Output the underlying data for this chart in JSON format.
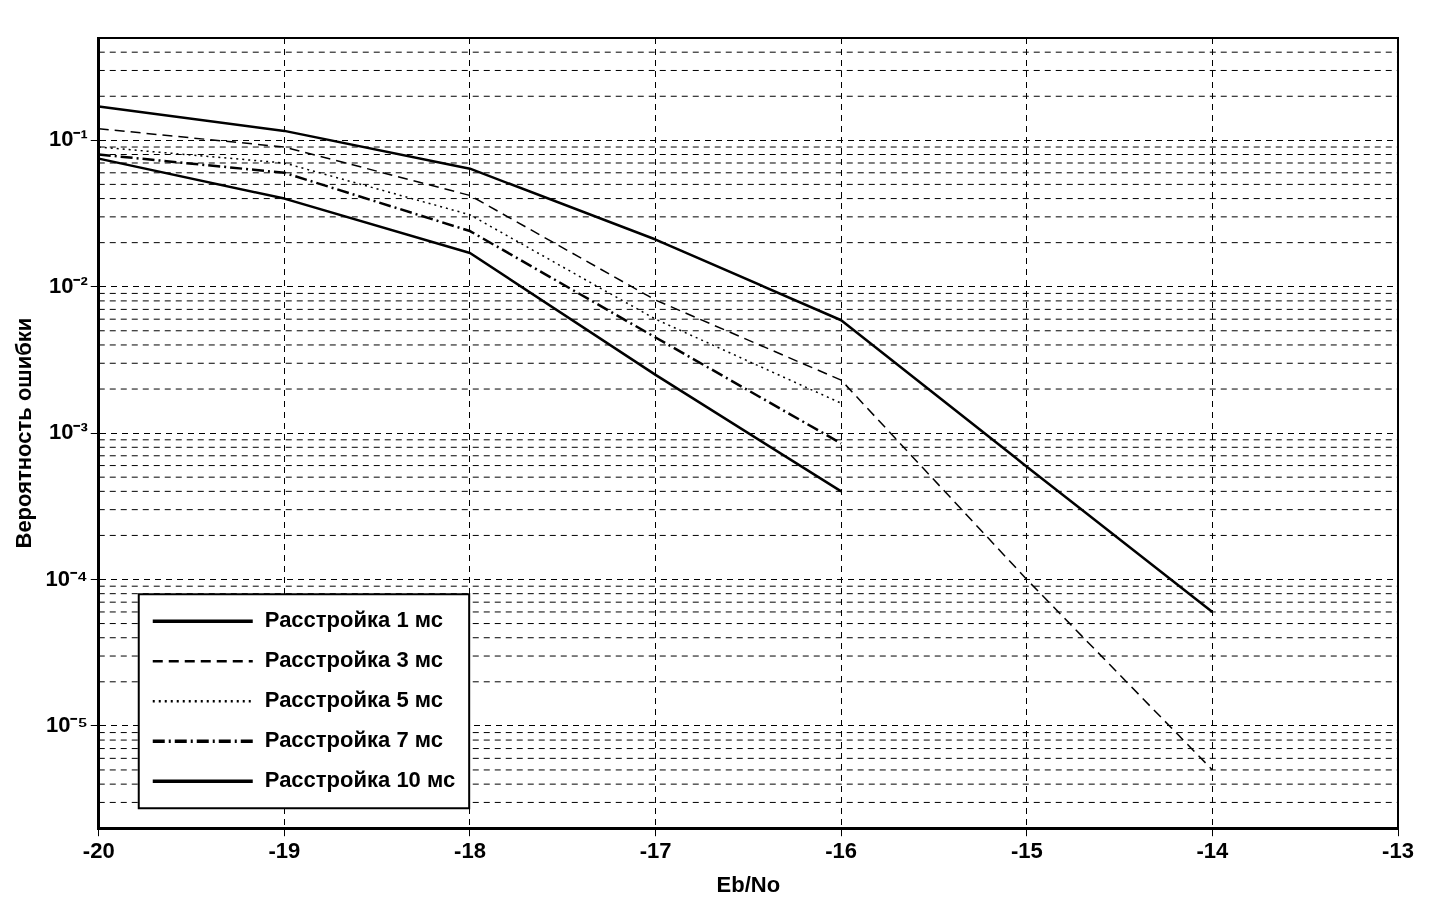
{
  "chart_data": {
    "type": "line",
    "xlabel": "Eb/No",
    "ylabel": "Вероятность ошибки",
    "x": [
      -20,
      -19,
      -18,
      -17,
      -16,
      -15,
      -14
    ],
    "series": [
      {
        "name": "Расстройка 1 мс",
        "color": "#000000",
        "line_style": "solid",
        "values": [
          0.17,
          0.116,
          0.064,
          0.021,
          0.0059,
          0.00059,
          6e-05
        ]
      },
      {
        "name": "Расстройка 3 мс",
        "color": "#000000",
        "line_style": "dashed",
        "values": [
          0.12,
          0.09,
          0.042,
          0.0081,
          0.0023,
          0.0001,
          5e-06
        ]
      },
      {
        "name": "Расстройка 5 мс",
        "color": "#000000",
        "line_style": "dotted",
        "values": [
          0.09,
          0.07,
          0.031,
          0.006,
          0.0016,
          null,
          null
        ]
      },
      {
        "name": "Расстройка 7 мс",
        "color": "#000000",
        "line_style": "dashdot",
        "values": [
          0.08,
          0.06,
          0.024,
          0.0045,
          0.00085,
          null,
          null
        ]
      },
      {
        "name": "Расстройка 10 мс",
        "color": "#000000",
        "line_style": "solid",
        "values": [
          0.075,
          0.04,
          0.017,
          0.0025,
          0.0004,
          null,
          null
        ]
      }
    ],
    "log": "y",
    "xlim": [
      -20,
      -13
    ],
    "xticks": [
      -20,
      -19,
      -18,
      -17,
      -16,
      -15,
      -14,
      -13
    ],
    "ylim": [
      2e-06,
      0.5
    ],
    "yticks": [
      {
        "value": 1e-05,
        "label": "10⁻⁵"
      },
      {
        "value": 0.0001,
        "label": "10⁻⁴"
      },
      {
        "value": 0.001,
        "label": "10⁻³"
      },
      {
        "value": 0.01,
        "label": "10⁻²"
      },
      {
        "value": 0.1,
        "label": "10⁻¹"
      }
    ],
    "grid": true,
    "legend": "bottom left",
    "marker": "none"
  }
}
